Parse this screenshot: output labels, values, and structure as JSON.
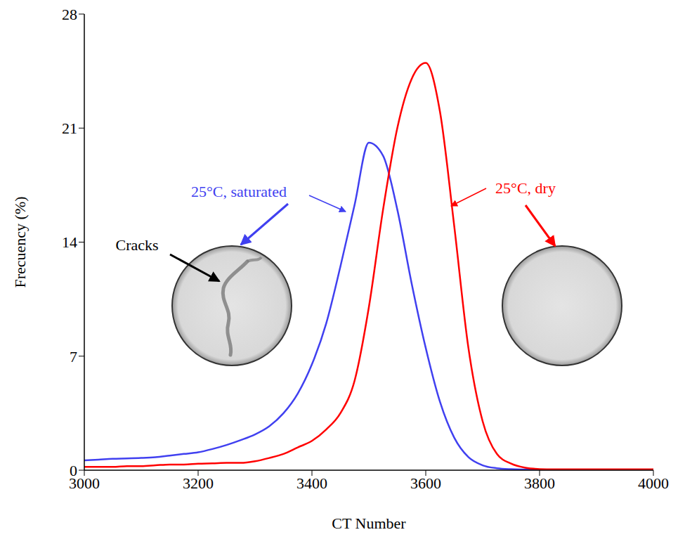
{
  "chart_data": {
    "type": "line",
    "x_label": "CT Number",
    "y_label": "Frecuency (%)",
    "x": [
      3000,
      3025,
      3050,
      3075,
      3100,
      3125,
      3150,
      3175,
      3200,
      3225,
      3250,
      3275,
      3300,
      3325,
      3350,
      3375,
      3400,
      3425,
      3450,
      3475,
      3500,
      3525,
      3550,
      3575,
      3600,
      3625,
      3650,
      3675,
      3700,
      3725,
      3750,
      3775,
      3800,
      3825,
      3850,
      3875,
      3900,
      3925,
      3950,
      3975,
      4000
    ],
    "series": [
      {
        "name": "25°C, saturated",
        "color": "#4040f0",
        "values": [
          0.6,
          0.65,
          0.7,
          0.72,
          0.75,
          0.8,
          0.9,
          1.0,
          1.1,
          1.3,
          1.55,
          1.85,
          2.2,
          2.7,
          3.5,
          4.7,
          6.5,
          9,
          12.5,
          16.3,
          20.1,
          19.3,
          16,
          11.5,
          7.5,
          4.2,
          2.0,
          0.8,
          0.3,
          0.12,
          0.06,
          0.04,
          0.03,
          0.03,
          0.03,
          0.03,
          0.03,
          0.03,
          0.03,
          0.03,
          0.03
        ]
      },
      {
        "name": "25°C, dry",
        "color": "#ff0000",
        "values": [
          0.2,
          0.2,
          0.2,
          0.25,
          0.25,
          0.3,
          0.35,
          0.35,
          0.4,
          0.42,
          0.45,
          0.45,
          0.55,
          0.75,
          1.0,
          1.4,
          1.8,
          2.5,
          3.5,
          5.5,
          10,
          16,
          21,
          24,
          25,
          22,
          15,
          7.5,
          3,
          1.0,
          0.4,
          0.15,
          0.07,
          0.05,
          0.05,
          0.05,
          0.05,
          0.05,
          0.05,
          0.05,
          0.05
        ]
      }
    ],
    "annotations": [
      "Cracks"
    ],
    "xlim": [
      3000,
      4000
    ],
    "xticks": [
      3000,
      3200,
      3400,
      3600,
      3800,
      4000
    ],
    "ylim": [
      0,
      28
    ],
    "yticks": [
      0,
      7,
      14,
      21,
      28
    ],
    "grid": false
  }
}
